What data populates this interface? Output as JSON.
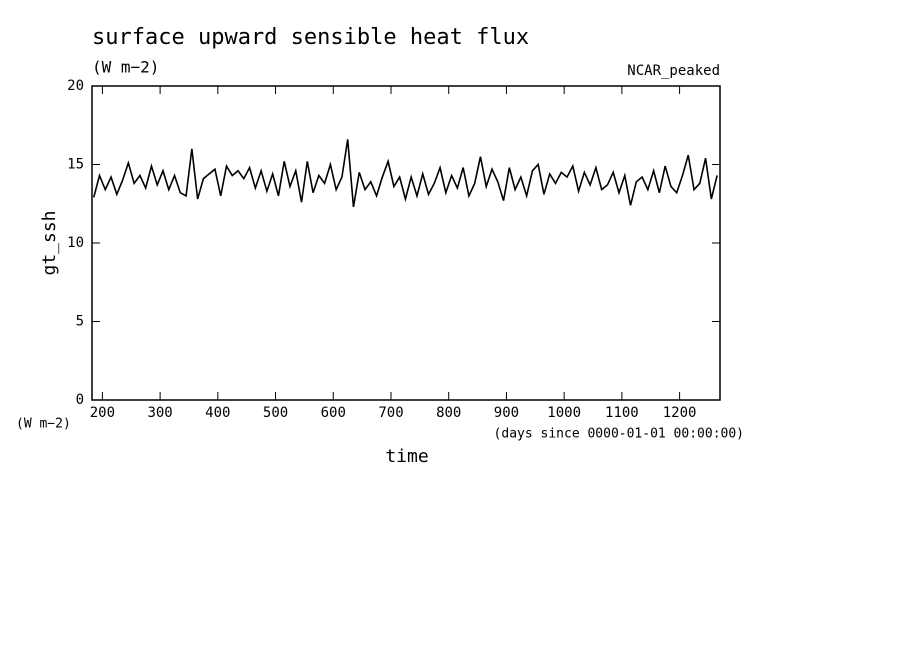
{
  "chart_data": {
    "type": "line",
    "title": "surface upward sensible heat flux",
    "subtitle": "(W m−2)",
    "annotation": "NCAR_peaked",
    "y_label": "gt_ssh",
    "y_unit": "(W m−2)",
    "x_label": "time",
    "x_unit": "(days since 0000-01-01 00:00:00)",
    "xlim": [
      182,
      1270
    ],
    "ylim": [
      0,
      20
    ],
    "xticks": [
      200,
      300,
      400,
      500,
      600,
      700,
      800,
      900,
      1000,
      1100,
      1200
    ],
    "yticks": [
      0,
      5,
      10,
      15,
      20
    ],
    "x": [
      185,
      195,
      205,
      215,
      225,
      235,
      245,
      255,
      265,
      275,
      285,
      295,
      305,
      315,
      325,
      335,
      345,
      355,
      365,
      375,
      385,
      395,
      405,
      415,
      425,
      435,
      445,
      455,
      465,
      475,
      485,
      495,
      505,
      515,
      525,
      535,
      545,
      555,
      565,
      575,
      585,
      595,
      605,
      615,
      625,
      635,
      645,
      655,
      665,
      675,
      685,
      695,
      705,
      715,
      725,
      735,
      745,
      755,
      765,
      775,
      785,
      795,
      805,
      815,
      825,
      835,
      845,
      855,
      865,
      875,
      885,
      895,
      905,
      915,
      925,
      935,
      945,
      955,
      965,
      975,
      985,
      995,
      1005,
      1015,
      1025,
      1035,
      1045,
      1055,
      1065,
      1075,
      1085,
      1095,
      1105,
      1115,
      1125,
      1135,
      1145,
      1155,
      1165,
      1175,
      1185,
      1195,
      1205,
      1215,
      1225,
      1235,
      1245,
      1255,
      1265
    ],
    "series": [
      {
        "color": "#000000",
        "values": [
          12.9,
          14.3,
          13.4,
          14.2,
          13.1,
          14.0,
          15.1,
          13.8,
          14.3,
          13.5,
          14.9,
          13.7,
          14.6,
          13.4,
          14.3,
          13.2,
          13.0,
          16.0,
          12.8,
          14.1,
          14.4,
          14.7,
          13.0,
          14.9,
          14.3,
          14.6,
          14.1,
          14.8,
          13.5,
          14.6,
          13.3,
          14.4,
          13.0,
          15.2,
          13.6,
          14.6,
          12.6,
          15.2,
          13.2,
          14.3,
          13.8,
          15.0,
          13.4,
          14.2,
          16.6,
          12.3,
          14.5,
          13.4,
          13.9,
          13.0,
          14.2,
          15.2,
          13.6,
          14.2,
          12.8,
          14.2,
          13.0,
          14.4,
          13.1,
          13.8,
          14.8,
          13.2,
          14.3,
          13.5,
          14.8,
          13.0,
          13.8,
          15.5,
          13.6,
          14.7,
          13.9,
          12.7,
          14.8,
          13.4,
          14.2,
          13.0,
          14.6,
          15.0,
          13.1,
          14.4,
          13.8,
          14.5,
          14.2,
          14.9,
          13.3,
          14.5,
          13.7,
          14.8,
          13.4,
          13.7,
          14.5,
          13.2,
          14.3,
          12.4,
          13.9,
          14.2,
          13.4,
          14.6,
          13.2,
          14.9,
          13.6,
          13.2,
          14.3,
          15.6,
          13.4,
          13.8,
          15.4,
          12.8,
          14.3
        ]
      }
    ]
  }
}
